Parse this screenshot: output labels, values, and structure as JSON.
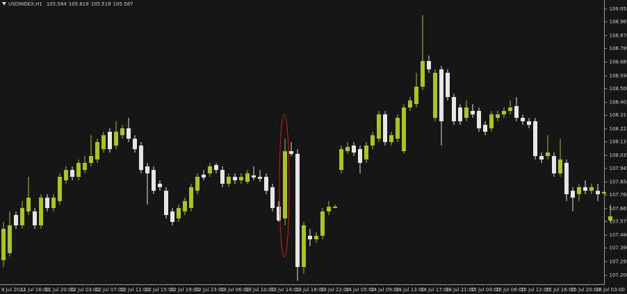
{
  "chart_data": {
    "type": "candlestick",
    "title": "USDINDEX,H1",
    "quote": [
      105.584,
      105.619,
      105.518,
      105.587
    ],
    "up_color": "#a9c520",
    "down_color": "#e6e6e6",
    "categories": [
      "8 Jul 2022",
      null,
      null,
      null,
      null,
      "11 Jul 16:00",
      null,
      null,
      null,
      "11 Jul 20:00",
      null,
      null,
      null,
      "12 Jul 03:00",
      null,
      null,
      null,
      "12 Jul 07:00",
      null,
      null,
      null,
      "12 Jul 11:00",
      null,
      null,
      null,
      "12 Jul 15:00",
      null,
      null,
      null,
      "12 Jul 19:00",
      null,
      null,
      null,
      "12 Jul 23:00",
      null,
      null,
      null,
      "13 Jul 06:00",
      null,
      null,
      null,
      "13 Jul 10:00",
      null,
      null,
      null,
      "13 Jul 14:00",
      null,
      null,
      null,
      "13 Jul 18:00",
      null,
      null,
      null,
      "13 Jul 22:00",
      null,
      null,
      null,
      "14 Jul 05:00",
      null,
      null,
      null,
      "14 Jul 09:00",
      null,
      null,
      null,
      "14 Jul 13:00",
      null,
      null,
      null,
      "14 Jul 17:00",
      null,
      null,
      null,
      "14 Jul 21:00",
      null,
      null,
      null,
      "15 Jul 04:00",
      null,
      null,
      null,
      "15 Jul 08:00",
      null,
      null,
      null,
      "15 Jul 12:00",
      null,
      null,
      null,
      "15 Jul 16:00",
      null,
      null,
      null,
      "15 Jul 20:00",
      null,
      null,
      null,
      "18 Jul 03:00"
    ],
    "open": [
      107.306,
      107.355,
      107.62,
      107.548,
      107.645,
      107.645,
      107.548,
      107.741,
      107.669,
      107.717,
      107.862,
      107.934,
      107.886,
      107.934,
      107.983,
      108.007,
      108.079,
      108.2,
      108.104,
      108.176,
      108.224,
      108.152,
      108.104,
      107.959,
      107.934,
      107.838,
      107.789,
      107.645,
      107.596,
      107.645,
      107.669,
      107.789,
      107.901,
      107.91,
      107.968,
      107.934,
      107.838,
      107.886,
      107.862,
      107.852,
      107.896,
      107.886,
      107.886,
      107.814,
      107.678,
      107.596,
      108.065,
      108.046,
      107.258,
      107.475,
      107.451,
      107.475,
      107.645,
      107.669,
      107.934,
      108.065,
      108.104,
      108.079,
      108.007,
      108.104,
      108.152,
      108.321,
      108.128,
      108.152,
      108.065,
      108.369,
      108.393,
      108.514,
      108.693,
      108.297,
      108.635,
      108.611,
      108.442,
      108.369,
      108.297,
      108.345,
      108.345,
      108.248,
      108.224,
      108.297,
      108.321,
      108.345,
      108.379,
      108.297,
      108.273,
      108.273,
      108.031,
      108.031,
      108.031,
      107.91,
      107.983,
      107.789,
      107.765,
      107.814,
      107.789,
      107.789,
      107.77,
      107.582
    ],
    "high": [
      107.572,
      107.645,
      107.645,
      107.717,
      107.886,
      107.669,
      107.765,
      107.765,
      107.765,
      107.91,
      107.959,
      107.959,
      108.007,
      108.031,
      108.176,
      108.152,
      108.2,
      108.224,
      108.273,
      108.248,
      108.297,
      108.176,
      108.128,
      107.983,
      107.959,
      107.862,
      107.814,
      107.669,
      107.693,
      107.741,
      107.838,
      107.91,
      107.934,
      107.983,
      107.983,
      107.959,
      107.91,
      107.91,
      107.91,
      107.934,
      107.959,
      107.934,
      107.91,
      107.838,
      107.717,
      108.152,
      108.128,
      108.079,
      107.572,
      107.524,
      107.5,
      107.669,
      107.717,
      107.693,
      108.104,
      108.128,
      108.128,
      108.104,
      108.128,
      108.2,
      108.345,
      108.345,
      108.2,
      108.321,
      108.393,
      108.442,
      108.611,
      109.012,
      108.732,
      108.635,
      108.659,
      108.635,
      108.466,
      108.393,
      108.418,
      108.393,
      108.369,
      108.273,
      108.345,
      108.345,
      108.369,
      108.418,
      108.442,
      108.321,
      108.297,
      108.297,
      108.055,
      108.176,
      108.055,
      108.152,
      108.007,
      107.814,
      107.838,
      107.862,
      107.838,
      107.838,
      107.789,
      107.693
    ],
    "low": [
      107.258,
      107.331,
      107.524,
      107.524,
      107.62,
      107.524,
      107.524,
      107.645,
      107.645,
      107.693,
      107.838,
      107.862,
      107.862,
      107.91,
      107.959,
      107.983,
      108.055,
      108.055,
      108.079,
      108.152,
      108.128,
      108.055,
      107.91,
      107.693,
      107.765,
      107.789,
      107.596,
      107.548,
      107.572,
      107.62,
      107.645,
      107.765,
      107.862,
      107.886,
      107.91,
      107.814,
      107.814,
      107.838,
      107.838,
      107.838,
      107.862,
      107.852,
      107.765,
      107.645,
      107.572,
      107.548,
      108.031,
      107.162,
      107.21,
      107.403,
      107.427,
      107.451,
      107.62,
      107.669,
      107.91,
      108.046,
      108.031,
      107.91,
      107.983,
      108.079,
      108.128,
      108.104,
      108.104,
      108.128,
      108.046,
      108.345,
      108.369,
      108.49,
      108.611,
      108.273,
      108.104,
      108.418,
      108.248,
      108.248,
      108.273,
      108.297,
      108.2,
      108.176,
      108.2,
      108.273,
      108.297,
      108.321,
      108.273,
      108.248,
      108.224,
      108.007,
      107.983,
      108.007,
      107.886,
      107.886,
      107.717,
      107.645,
      107.717,
      107.765,
      107.765,
      107.717,
      107.765,
      107.572
    ],
    "close": [
      107.524,
      107.548,
      107.548,
      107.669,
      107.741,
      107.548,
      107.741,
      107.669,
      107.741,
      107.886,
      107.934,
      107.886,
      107.983,
      107.983,
      108.031,
      108.128,
      108.176,
      108.079,
      108.2,
      108.224,
      108.152,
      108.079,
      107.934,
      107.91,
      107.789,
      107.814,
      107.62,
      107.572,
      107.669,
      107.717,
      107.814,
      107.886,
      107.881,
      107.959,
      107.934,
      107.838,
      107.886,
      107.862,
      107.886,
      107.91,
      107.881,
      107.872,
      107.789,
      107.669,
      107.582,
      108.065,
      108.046,
      107.258,
      107.548,
      107.451,
      107.475,
      107.645,
      107.678,
      107.678,
      108.079,
      108.094,
      108.055,
      107.983,
      108.104,
      108.176,
      108.321,
      108.128,
      108.176,
      108.297,
      108.369,
      108.418,
      108.514,
      108.693,
      108.635,
      108.611,
      108.273,
      108.442,
      108.273,
      108.273,
      108.369,
      108.321,
      108.224,
      108.2,
      108.321,
      108.321,
      108.345,
      108.369,
      108.297,
      108.273,
      108.248,
      108.031,
      108.007,
      108.055,
      107.91,
      108.007,
      107.765,
      107.741,
      107.814,
      107.789,
      107.814,
      107.765,
      107.78,
      107.611
    ],
    "ylim": [
      107.147,
      109.118
    ],
    "yticks": [
      109.055,
      108.965,
      {
        "value": 108.87,
        "label": "108.870"
      },
      {
        "value": 108.78,
        "label": "108.780"
      },
      108.685,
      {
        "value": 108.59,
        "label": "108.590"
      },
      {
        "value": 108.5,
        "label": "108.500"
      },
      108.405,
      108.315,
      108.22,
      108.13,
      108.035,
      107.945,
      {
        "value": 107.85,
        "label": "107.850"
      },
      {
        "value": 107.76,
        "label": "107.760"
      },
      107.665,
      107.575,
      {
        "value": 107.48,
        "label": "107.480"
      },
      {
        "value": 107.39,
        "label": "107.390"
      },
      107.295,
      {
        "value": 107.2,
        "label": "107.200"
      }
    ],
    "grid": false
  }
}
